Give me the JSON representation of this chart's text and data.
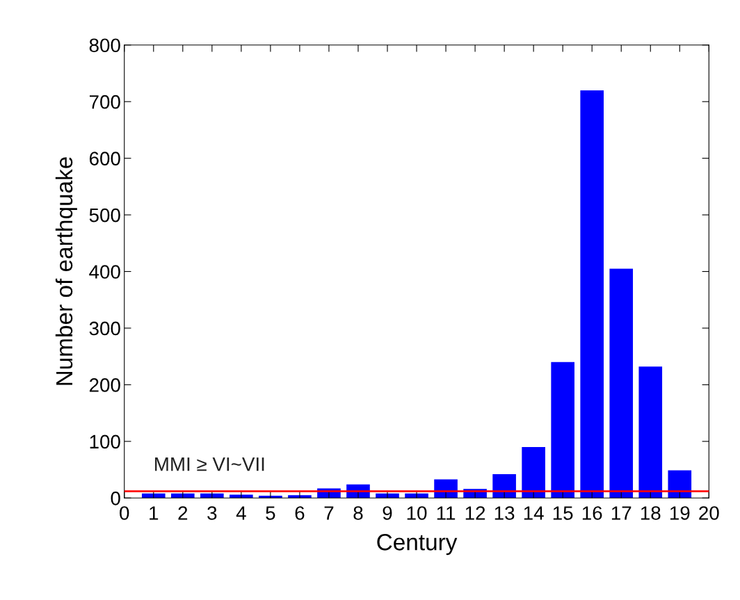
{
  "chart_data": {
    "type": "bar",
    "xlabel": "Century",
    "ylabel": "Number of earthquake",
    "x": [
      1,
      2,
      3,
      4,
      5,
      6,
      7,
      8,
      9,
      10,
      11,
      12,
      13,
      14,
      15,
      16,
      17,
      18,
      19
    ],
    "values": [
      8,
      8,
      8,
      6,
      4,
      5,
      17,
      24,
      8,
      8,
      33,
      16,
      42,
      90,
      240,
      720,
      405,
      232,
      49
    ],
    "color": "#0000ff",
    "xlim": [
      0,
      20
    ],
    "xticks": [
      0,
      1,
      2,
      3,
      4,
      5,
      6,
      7,
      8,
      9,
      10,
      11,
      12,
      13,
      14,
      15,
      16,
      17,
      18,
      19,
      20
    ],
    "ylim": [
      0,
      800
    ],
    "yticks": [
      0,
      100,
      200,
      300,
      400,
      500,
      600,
      700,
      800
    ],
    "ref_lines": [
      {
        "axis": "y",
        "value": 12,
        "color": "#ff0000",
        "line_style": "solid"
      }
    ],
    "annotations": [
      "MMI ≥ VI~VII"
    ],
    "grid": false
  }
}
